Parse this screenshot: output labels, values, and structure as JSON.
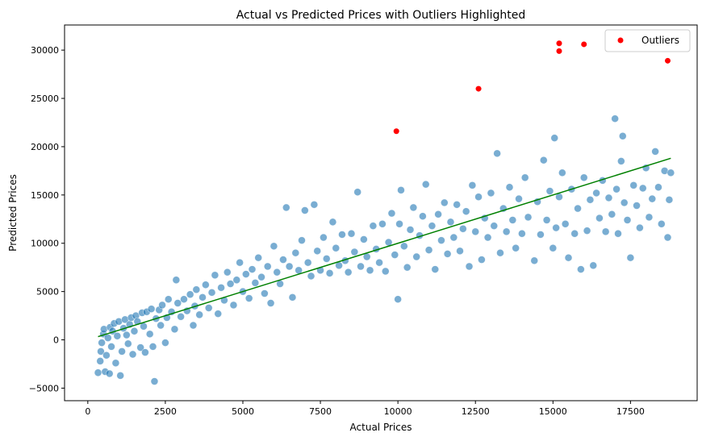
{
  "chart_data": {
    "type": "scatter",
    "title": "Actual vs Predicted Prices with Outliers Highlighted",
    "xlabel": "Actual Prices",
    "ylabel": "Predicted Prices",
    "xlim": [
      -750,
      19650
    ],
    "ylim": [
      -6300,
      32600
    ],
    "xticks": [
      0,
      2500,
      5000,
      7500,
      10000,
      12500,
      15000,
      17500
    ],
    "yticks": [
      -5000,
      0,
      5000,
      10000,
      15000,
      20000,
      25000,
      30000
    ],
    "grid": false,
    "legend": {
      "placement": "top-right",
      "entries": [
        "Outliers"
      ]
    },
    "colors": {
      "points": "#1f77b4",
      "outliers": "#ff0000",
      "fit_line": "#008000"
    },
    "fit_line": [
      [
        330,
        330
      ],
      [
        18800,
        18800
      ]
    ],
    "outliers": {
      "name": "Outliers",
      "points": [
        [
          9950,
          21600
        ],
        [
          12600,
          26000
        ],
        [
          15200,
          30700
        ],
        [
          15200,
          29900
        ],
        [
          16000,
          30600
        ],
        [
          18700,
          28900
        ]
      ]
    },
    "points": [
      [
        330,
        -3400
      ],
      [
        400,
        -2200
      ],
      [
        420,
        -1200
      ],
      [
        450,
        -300
      ],
      [
        500,
        600
      ],
      [
        520,
        1100
      ],
      [
        560,
        -3300
      ],
      [
        600,
        -1600
      ],
      [
        650,
        200
      ],
      [
        700,
        -3500
      ],
      [
        720,
        1300
      ],
      [
        760,
        -700
      ],
      [
        800,
        900
      ],
      [
        850,
        1700
      ],
      [
        900,
        -2400
      ],
      [
        950,
        400
      ],
      [
        1000,
        1900
      ],
      [
        1050,
        -3700
      ],
      [
        1100,
        -1200
      ],
      [
        1150,
        1200
      ],
      [
        1200,
        2100
      ],
      [
        1250,
        500
      ],
      [
        1300,
        -400
      ],
      [
        1350,
        1600
      ],
      [
        1400,
        2300
      ],
      [
        1450,
        -1500
      ],
      [
        1500,
        900
      ],
      [
        1550,
        2500
      ],
      [
        1600,
        1900
      ],
      [
        1700,
        -800
      ],
      [
        1750,
        2800
      ],
      [
        1800,
        1400
      ],
      [
        1850,
        -1300
      ],
      [
        1900,
        2900
      ],
      [
        2000,
        600
      ],
      [
        2050,
        3200
      ],
      [
        2100,
        -700
      ],
      [
        2150,
        -4300
      ],
      [
        2200,
        2200
      ],
      [
        2300,
        3100
      ],
      [
        2350,
        1500
      ],
      [
        2400,
        3600
      ],
      [
        2500,
        -300
      ],
      [
        2550,
        2300
      ],
      [
        2600,
        4200
      ],
      [
        2700,
        2900
      ],
      [
        2800,
        1100
      ],
      [
        2850,
        6200
      ],
      [
        2900,
        3800
      ],
      [
        3000,
        2400
      ],
      [
        3100,
        4200
      ],
      [
        3200,
        3000
      ],
      [
        3300,
        4700
      ],
      [
        3400,
        1500
      ],
      [
        3450,
        3500
      ],
      [
        3500,
        5200
      ],
      [
        3600,
        2600
      ],
      [
        3700,
        4400
      ],
      [
        3800,
        5700
      ],
      [
        3900,
        3300
      ],
      [
        4000,
        4900
      ],
      [
        4100,
        6700
      ],
      [
        4200,
        2700
      ],
      [
        4300,
        5400
      ],
      [
        4400,
        4100
      ],
      [
        4500,
        7000
      ],
      [
        4600,
        5800
      ],
      [
        4700,
        3600
      ],
      [
        4800,
        6200
      ],
      [
        4900,
        8000
      ],
      [
        5000,
        5000
      ],
      [
        5100,
        6800
      ],
      [
        5200,
        4300
      ],
      [
        5300,
        7300
      ],
      [
        5400,
        5900
      ],
      [
        5500,
        8500
      ],
      [
        5600,
        6500
      ],
      [
        5700,
        4800
      ],
      [
        5800,
        7600
      ],
      [
        5900,
        3800
      ],
      [
        6000,
        9700
      ],
      [
        6100,
        7000
      ],
      [
        6200,
        5800
      ],
      [
        6300,
        8300
      ],
      [
        6400,
        13700
      ],
      [
        6500,
        7600
      ],
      [
        6600,
        4400
      ],
      [
        6700,
        9000
      ],
      [
        6800,
        7200
      ],
      [
        6900,
        10300
      ],
      [
        7000,
        13400
      ],
      [
        7100,
        8000
      ],
      [
        7200,
        6600
      ],
      [
        7300,
        14000
      ],
      [
        7400,
        9200
      ],
      [
        7500,
        7200
      ],
      [
        7600,
        10600
      ],
      [
        7700,
        8400
      ],
      [
        7800,
        6900
      ],
      [
        7900,
        12200
      ],
      [
        8000,
        9500
      ],
      [
        8100,
        7700
      ],
      [
        8200,
        10900
      ],
      [
        8300,
        8200
      ],
      [
        8400,
        7000
      ],
      [
        8500,
        11000
      ],
      [
        8600,
        9100
      ],
      [
        8700,
        15300
      ],
      [
        8800,
        7600
      ],
      [
        8900,
        10400
      ],
      [
        9000,
        8600
      ],
      [
        9100,
        7200
      ],
      [
        9200,
        11800
      ],
      [
        9300,
        9400
      ],
      [
        9400,
        8000
      ],
      [
        9500,
        12000
      ],
      [
        9600,
        7100
      ],
      [
        9700,
        10100
      ],
      [
        9800,
        13100
      ],
      [
        9900,
        8800
      ],
      [
        10000,
        4200
      ],
      [
        10050,
        12000
      ],
      [
        10100,
        15500
      ],
      [
        10200,
        9700
      ],
      [
        10300,
        7500
      ],
      [
        10400,
        11400
      ],
      [
        10500,
        13700
      ],
      [
        10600,
        8600
      ],
      [
        10700,
        10800
      ],
      [
        10800,
        12800
      ],
      [
        10900,
        16100
      ],
      [
        11000,
        9300
      ],
      [
        11100,
        11800
      ],
      [
        11200,
        7300
      ],
      [
        11300,
        13000
      ],
      [
        11400,
        10300
      ],
      [
        11500,
        14200
      ],
      [
        11600,
        8900
      ],
      [
        11700,
        12200
      ],
      [
        11800,
        10600
      ],
      [
        11900,
        14000
      ],
      [
        12000,
        9200
      ],
      [
        12100,
        11500
      ],
      [
        12200,
        13300
      ],
      [
        12300,
        7600
      ],
      [
        12400,
        16000
      ],
      [
        12500,
        11200
      ],
      [
        12600,
        14800
      ],
      [
        12700,
        8300
      ],
      [
        12800,
        12600
      ],
      [
        12900,
        10600
      ],
      [
        13000,
        15200
      ],
      [
        13100,
        11800
      ],
      [
        13200,
        19300
      ],
      [
        13300,
        9000
      ],
      [
        13400,
        13600
      ],
      [
        13500,
        11200
      ],
      [
        13600,
        15800
      ],
      [
        13700,
        12400
      ],
      [
        13800,
        9500
      ],
      [
        13900,
        14600
      ],
      [
        14000,
        11000
      ],
      [
        14100,
        16800
      ],
      [
        14200,
        12700
      ],
      [
        14400,
        8200
      ],
      [
        14500,
        14300
      ],
      [
        14600,
        10900
      ],
      [
        14700,
        18600
      ],
      [
        14800,
        12400
      ],
      [
        14900,
        15400
      ],
      [
        15000,
        9500
      ],
      [
        15050,
        20900
      ],
      [
        15100,
        11600
      ],
      [
        15200,
        14800
      ],
      [
        15300,
        17300
      ],
      [
        15400,
        12000
      ],
      [
        15500,
        8500
      ],
      [
        15600,
        15600
      ],
      [
        15700,
        11000
      ],
      [
        15800,
        13600
      ],
      [
        15900,
        7300
      ],
      [
        16000,
        16800
      ],
      [
        16100,
        11300
      ],
      [
        16200,
        14500
      ],
      [
        16300,
        7700
      ],
      [
        16400,
        15200
      ],
      [
        16500,
        12600
      ],
      [
        16600,
        16500
      ],
      [
        16700,
        11200
      ],
      [
        16800,
        14700
      ],
      [
        16900,
        13000
      ],
      [
        17000,
        22900
      ],
      [
        17050,
        15600
      ],
      [
        17100,
        11000
      ],
      [
        17200,
        18500
      ],
      [
        17250,
        21100
      ],
      [
        17300,
        14200
      ],
      [
        17400,
        12400
      ],
      [
        17500,
        8500
      ],
      [
        17600,
        16000
      ],
      [
        17700,
        13900
      ],
      [
        17800,
        11600
      ],
      [
        17900,
        15700
      ],
      [
        18000,
        17800
      ],
      [
        18100,
        12700
      ],
      [
        18200,
        14600
      ],
      [
        18300,
        19500
      ],
      [
        18400,
        15800
      ],
      [
        18500,
        12000
      ],
      [
        18600,
        17500
      ],
      [
        18700,
        10600
      ],
      [
        18750,
        14500
      ],
      [
        18800,
        17300
      ]
    ]
  }
}
